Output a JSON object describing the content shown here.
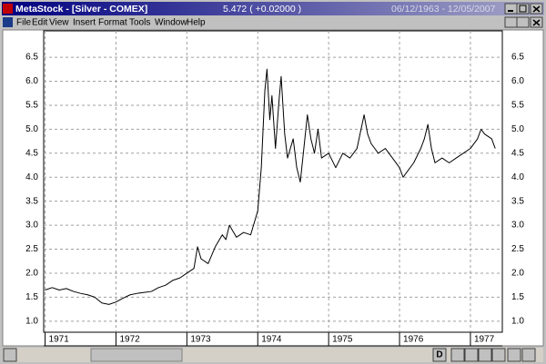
{
  "window": {
    "title": "MetaStock - [Silver - COMEX]",
    "price": "5.472 ( +0.02000 )",
    "date_range": "06/12/1963 - 12/05/2007"
  },
  "menu": [
    "File",
    "Edit",
    "View",
    "Insert",
    "Format",
    "Tools",
    "Window",
    "Help"
  ],
  "controls": {
    "zoom_button": "D"
  },
  "chart_data": {
    "type": "line",
    "x": [
      1971.0,
      1971.1,
      1971.2,
      1971.3,
      1971.4,
      1971.5,
      1971.6,
      1971.7,
      1971.8,
      1971.9,
      1972.0,
      1972.1,
      1972.2,
      1972.3,
      1972.4,
      1972.5,
      1972.6,
      1972.7,
      1972.8,
      1972.9,
      1973.0,
      1973.1,
      1973.15,
      1973.2,
      1973.3,
      1973.4,
      1973.5,
      1973.55,
      1973.6,
      1973.7,
      1973.8,
      1973.9,
      1974.0,
      1974.05,
      1974.1,
      1974.13,
      1974.17,
      1974.2,
      1974.25,
      1974.3,
      1974.33,
      1974.38,
      1974.42,
      1974.5,
      1974.55,
      1974.6,
      1974.65,
      1974.7,
      1974.75,
      1974.8,
      1974.85,
      1974.9,
      1975.0,
      1975.1,
      1975.2,
      1975.3,
      1975.4,
      1975.5,
      1975.55,
      1975.6,
      1975.7,
      1975.8,
      1975.9,
      1976.0,
      1976.05,
      1976.1,
      1976.2,
      1976.3,
      1976.35,
      1976.4,
      1976.45,
      1976.5,
      1976.6,
      1976.7,
      1976.8,
      1976.9,
      1977.0,
      1977.1,
      1977.15,
      1977.2,
      1977.3,
      1977.35
    ],
    "series": [
      {
        "name": "Silver - COMEX",
        "color": "#000000",
        "values": [
          1.65,
          1.7,
          1.65,
          1.68,
          1.62,
          1.58,
          1.55,
          1.5,
          1.38,
          1.35,
          1.4,
          1.48,
          1.55,
          1.58,
          1.6,
          1.62,
          1.7,
          1.75,
          1.85,
          1.9,
          2.0,
          2.1,
          2.55,
          2.3,
          2.2,
          2.55,
          2.8,
          2.7,
          3.0,
          2.75,
          2.85,
          2.8,
          3.3,
          4.2,
          5.8,
          6.25,
          5.2,
          5.7,
          4.6,
          5.6,
          6.1,
          4.9,
          4.4,
          4.8,
          4.2,
          3.9,
          4.6,
          5.3,
          4.8,
          4.5,
          5.0,
          4.4,
          4.5,
          4.2,
          4.5,
          4.4,
          4.6,
          5.3,
          4.9,
          4.7,
          4.5,
          4.6,
          4.4,
          4.2,
          4.0,
          4.1,
          4.3,
          4.6,
          4.8,
          5.1,
          4.6,
          4.3,
          4.4,
          4.3,
          4.4,
          4.5,
          4.6,
          4.8,
          5.0,
          4.9,
          4.8,
          4.6
        ]
      }
    ],
    "xlim": [
      1970.98,
      1977.45
    ],
    "xticks": [
      1971,
      1972,
      1973,
      1974,
      1975,
      1976,
      1977
    ],
    "ylim": [
      0.77,
      7.05
    ],
    "yticks": [
      {
        "value": 1,
        "label": "1.0"
      },
      1.5,
      {
        "value": 2,
        "label": "2.0"
      },
      2.5,
      {
        "value": 3,
        "label": "3.0"
      },
      3.5,
      {
        "value": 4,
        "label": "4.0"
      },
      4.5,
      {
        "value": 5,
        "label": "5.0"
      },
      5.5,
      {
        "value": 6,
        "label": "6.0"
      },
      6.5
    ],
    "grid": true
  }
}
